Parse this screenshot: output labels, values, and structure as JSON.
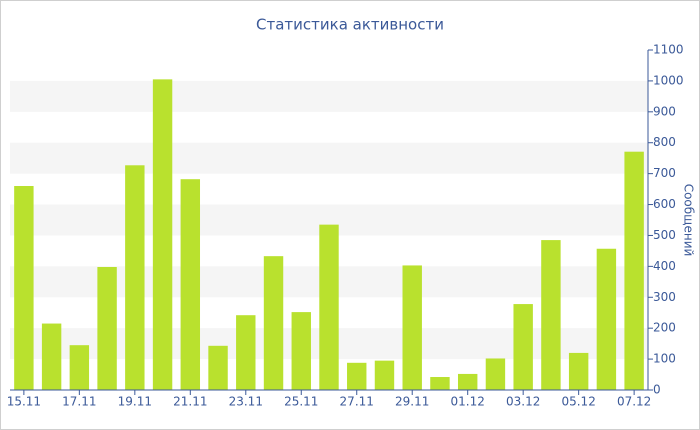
{
  "chart_data": {
    "type": "bar",
    "title": "Статистика активности",
    "y_label": "Сообщений",
    "categories": [
      "15.11",
      null,
      "17.11",
      null,
      "19.11",
      null,
      "21.11",
      null,
      "23.11",
      null,
      "25.11",
      null,
      "27.11",
      null,
      "29.11",
      null,
      "01.12",
      null,
      "03.12",
      null,
      "05.12",
      null,
      "07.12"
    ],
    "values": [
      660,
      215,
      145,
      398,
      727,
      1005,
      682,
      143,
      242,
      433,
      252,
      535,
      88,
      95,
      403,
      42,
      52,
      102,
      278,
      485,
      120,
      457,
      771
    ],
    "color": "#b9e12e",
    "ylim": [
      0,
      1100
    ],
    "yticks": [
      0,
      100,
      200,
      300,
      400,
      500,
      600,
      700,
      800,
      900,
      1000,
      1100
    ],
    "grid": true
  }
}
